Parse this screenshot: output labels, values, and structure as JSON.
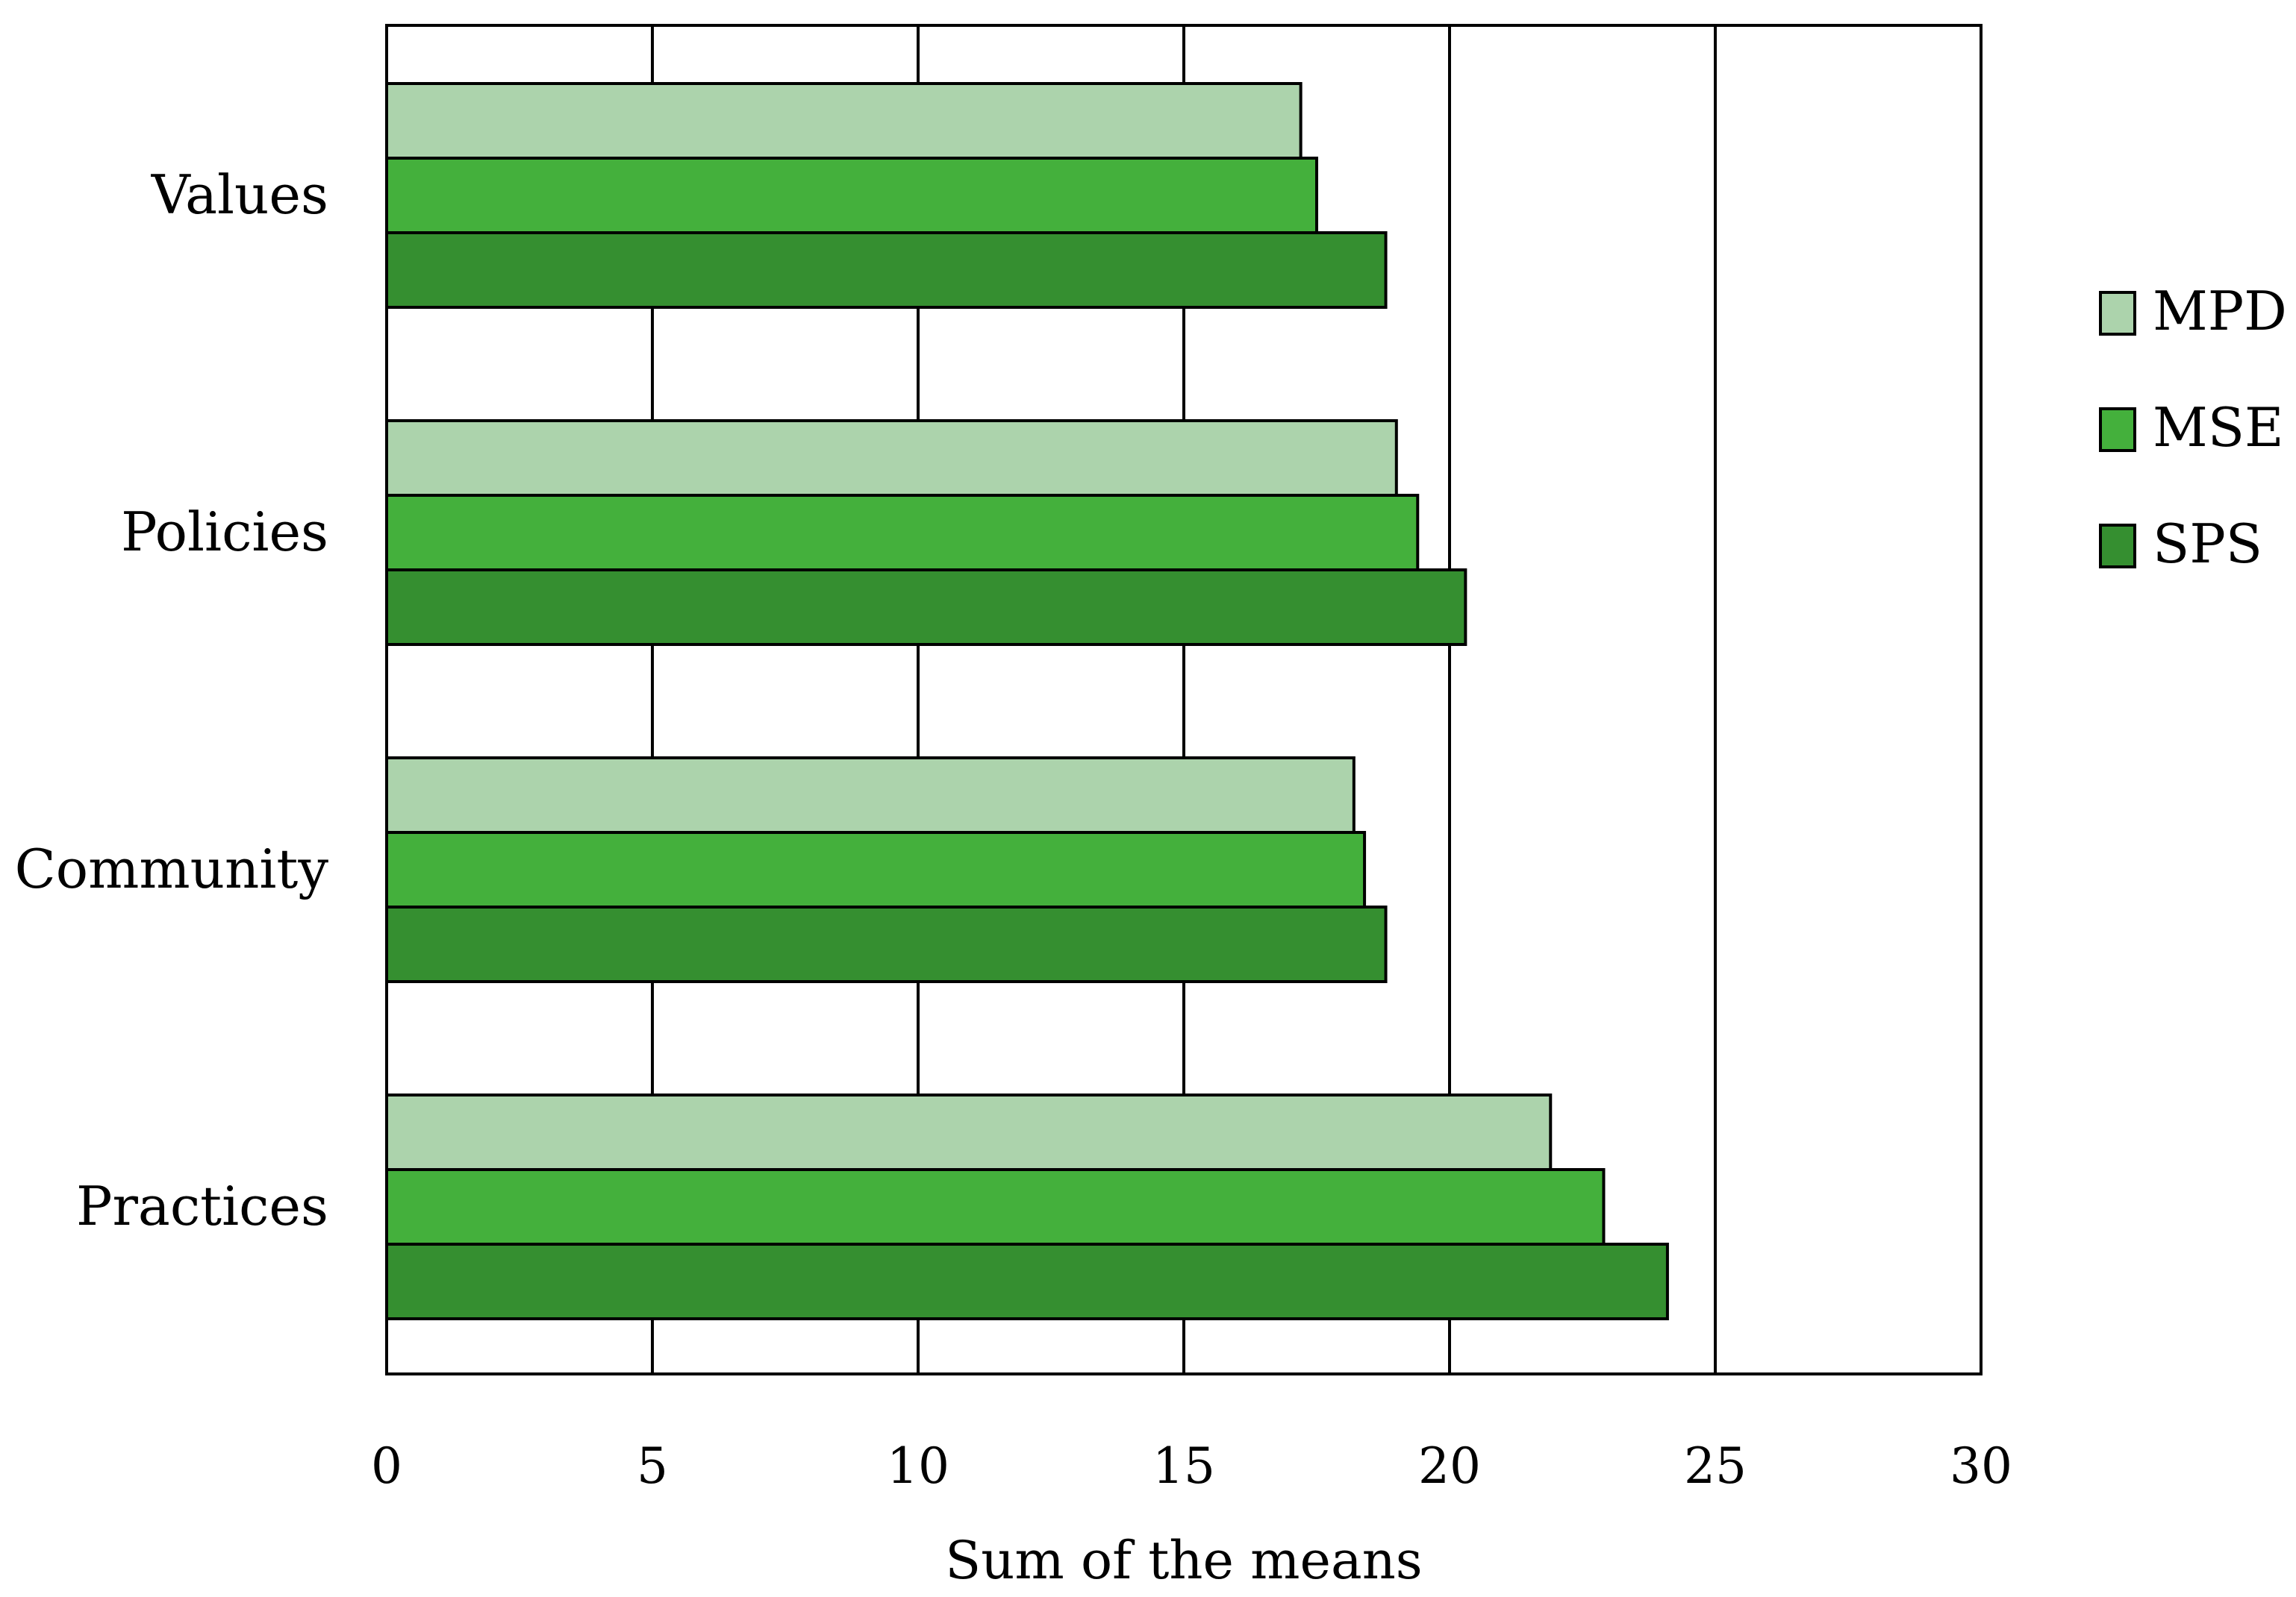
{
  "chart_data": {
    "type": "bar",
    "orientation": "horizontal",
    "categories": [
      "Values",
      "Policies",
      "Community",
      "Practices"
    ],
    "series": [
      {
        "name": "MPD",
        "values": [
          17.2,
          19.0,
          18.2,
          21.9
        ],
        "color": "#acd3ac"
      },
      {
        "name": "MSE",
        "values": [
          17.5,
          19.4,
          18.4,
          22.9
        ],
        "color": "#44b03c"
      },
      {
        "name": "SPS",
        "values": [
          18.8,
          20.3,
          18.8,
          24.1
        ],
        "color": "#358f30"
      }
    ],
    "xlabel": "Sum of the means",
    "xlim": [
      0,
      30
    ],
    "xticks": [
      0,
      5,
      10,
      15,
      20,
      25,
      30
    ],
    "grid": "vertical",
    "legend_position": "right"
  }
}
